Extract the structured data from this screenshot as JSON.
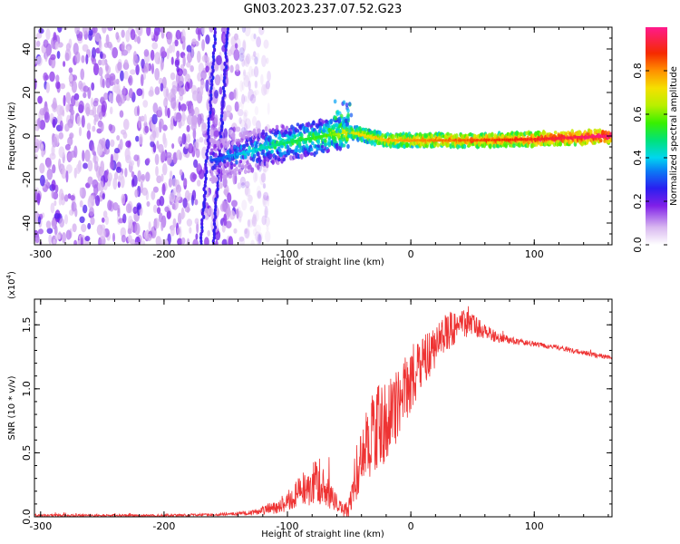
{
  "title": "GN03.2023.237.07.52.G23",
  "chart_data": [
    {
      "type": "heatmap",
      "xlabel": "Height of straight line (km)",
      "ylabel": "Frequency (Hz)",
      "xlim": [
        -305,
        163
      ],
      "ylim": [
        -50,
        50
      ],
      "x_ticks": [
        -300,
        -200,
        -100,
        0,
        100
      ],
      "y_ticks": [
        -40,
        -20,
        0,
        20,
        40
      ],
      "colorbar": {
        "label": "Normalized spectral amplitude",
        "range": [
          0,
          1
        ],
        "ticks": [
          0.0,
          0.2,
          0.4,
          0.6,
          0.8
        ],
        "colormap": "rainbow"
      },
      "features": {
        "noise_region_x": [
          -305,
          -140
        ],
        "signal_band": [
          {
            "x": -160,
            "y": -11,
            "amp": 0.3
          },
          {
            "x": -130,
            "y": -7,
            "amp": 0.4
          },
          {
            "x": -100,
            "y": -3,
            "amp": 0.5
          },
          {
            "x": -70,
            "y": 0,
            "amp": 0.55
          },
          {
            "x": -50,
            "y": 2,
            "amp": 0.7
          },
          {
            "x": -20,
            "y": -2,
            "amp": 0.75
          },
          {
            "x": 0,
            "y": -2,
            "amp": 0.8
          },
          {
            "x": 50,
            "y": -2,
            "amp": 0.85
          },
          {
            "x": 100,
            "y": -1.5,
            "amp": 0.9
          },
          {
            "x": 163,
            "y": 0,
            "amp": 1.0
          }
        ]
      }
    },
    {
      "type": "line",
      "xlabel": "Height of straight line (km)",
      "ylabel": "SNR (10 * v/v)",
      "y_multiplier": "(x10",
      "y_multiplier_exp": "4",
      "y_multiplier_close": ")",
      "xlim": [
        -305,
        163
      ],
      "ylim": [
        0,
        1.7
      ],
      "x_ticks": [
        -300,
        -200,
        -100,
        0,
        100
      ],
      "y_ticks": [
        0.0,
        0.5,
        1.0,
        1.5
      ],
      "y_tick_labels": [
        "0.0",
        "0.5",
        "1.0",
        "1.5"
      ],
      "color": "#ee3333",
      "envelope": {
        "x": [
          -305,
          -200,
          -150,
          -130,
          -110,
          -100,
          -90,
          -80,
          -75,
          -70,
          -60,
          -55,
          -50,
          -45,
          -40,
          -35,
          -30,
          -25,
          -20,
          -15,
          -10,
          -5,
          0,
          10,
          20,
          30,
          40,
          50,
          60,
          70,
          80,
          100,
          120,
          140,
          163
        ],
        "mean": [
          0.01,
          0.01,
          0.02,
          0.03,
          0.07,
          0.12,
          0.2,
          0.25,
          0.3,
          0.22,
          0.1,
          0.05,
          0.08,
          0.3,
          0.5,
          0.55,
          0.7,
          0.7,
          0.75,
          0.8,
          0.9,
          1.0,
          1.05,
          1.2,
          1.35,
          1.45,
          1.5,
          1.5,
          1.45,
          1.4,
          1.38,
          1.35,
          1.32,
          1.28,
          1.24
        ],
        "spread": [
          0.01,
          0.01,
          0.01,
          0.02,
          0.05,
          0.08,
          0.12,
          0.16,
          0.2,
          0.14,
          0.08,
          0.05,
          0.08,
          0.2,
          0.25,
          0.3,
          0.35,
          0.35,
          0.3,
          0.3,
          0.28,
          0.25,
          0.25,
          0.2,
          0.18,
          0.15,
          0.12,
          0.1,
          0.06,
          0.04,
          0.03,
          0.02,
          0.02,
          0.02,
          0.02
        ]
      }
    }
  ]
}
